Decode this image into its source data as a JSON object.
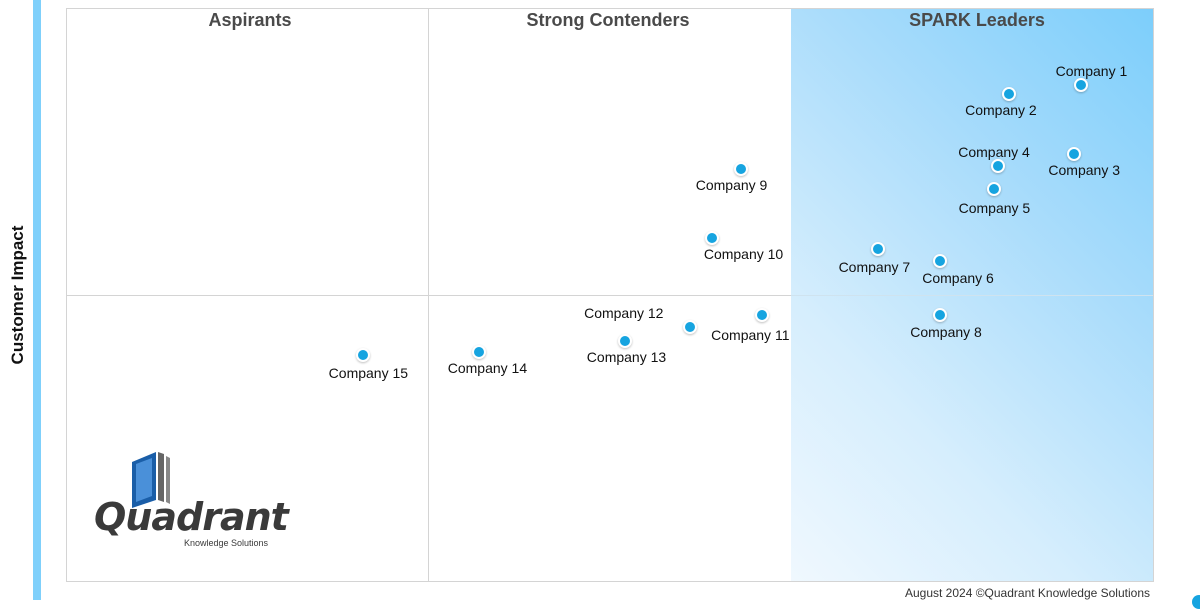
{
  "chart_data": {
    "type": "scatter",
    "ylabel": "Customer Impact",
    "xlabel": "",
    "xlim": [
      0,
      3
    ],
    "ylim": [
      0,
      2
    ],
    "quadrants": [
      "Aspirants",
      "Strong Contenders",
      "SPARK Leaders"
    ],
    "points": [
      {
        "label": "Company 1",
        "x": 2.8,
        "y": 1.73
      },
      {
        "label": "Company 2",
        "x": 2.6,
        "y": 1.7
      },
      {
        "label": "Company 3",
        "x": 2.78,
        "y": 1.49
      },
      {
        "label": "Company 4",
        "x": 2.57,
        "y": 1.45
      },
      {
        "label": "Company 5",
        "x": 2.56,
        "y": 1.37
      },
      {
        "label": "Company 6",
        "x": 2.41,
        "y": 1.12
      },
      {
        "label": "Company 7",
        "x": 2.24,
        "y": 1.16
      },
      {
        "label": "Company 8",
        "x": 2.41,
        "y": 0.93
      },
      {
        "label": "Company 9",
        "x": 1.86,
        "y": 1.44
      },
      {
        "label": "Company 10",
        "x": 1.78,
        "y": 1.2
      },
      {
        "label": "Company 11",
        "x": 1.92,
        "y": 0.93
      },
      {
        "label": "Company 12",
        "x": 1.72,
        "y": 0.89
      },
      {
        "label": "Company 13",
        "x": 1.54,
        "y": 0.84
      },
      {
        "label": "Company 14",
        "x": 1.14,
        "y": 0.8
      },
      {
        "label": "Company 15",
        "x": 0.82,
        "y": 0.79
      }
    ]
  },
  "logo": {
    "word": "Quadrant",
    "sub": "Knowledge Solutions"
  },
  "footer": "August 2024 ©Quadrant Knowledge Solutions",
  "colors": {
    "dot": "#16a4e0",
    "accent_bar": "#7fd0fb",
    "leaders_bg": "#7ccefb"
  }
}
